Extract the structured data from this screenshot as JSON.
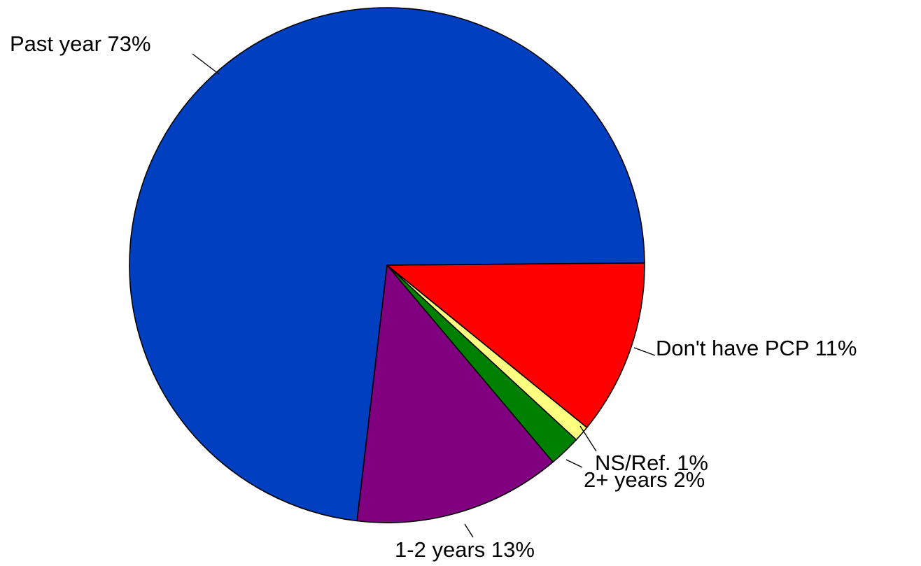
{
  "chart_data": {
    "type": "pie",
    "title": "",
    "slices": [
      {
        "label": "Don't have PCP",
        "pct_text": "11%",
        "value": 11,
        "color": "#ff0000"
      },
      {
        "label": "NS/Ref.",
        "pct_text": "1%",
        "value": 1,
        "color": "#ffff80"
      },
      {
        "label": "2+ years",
        "pct_text": "2%",
        "value": 2,
        "color": "#008000"
      },
      {
        "label": "1-2 years",
        "pct_text": "13%",
        "value": 13,
        "color": "#800080"
      },
      {
        "label": "Past year",
        "pct_text": "73%",
        "value": 73,
        "color": "#0040c0"
      }
    ],
    "start": "right (3 o'clock)",
    "direction": "clockwise"
  }
}
